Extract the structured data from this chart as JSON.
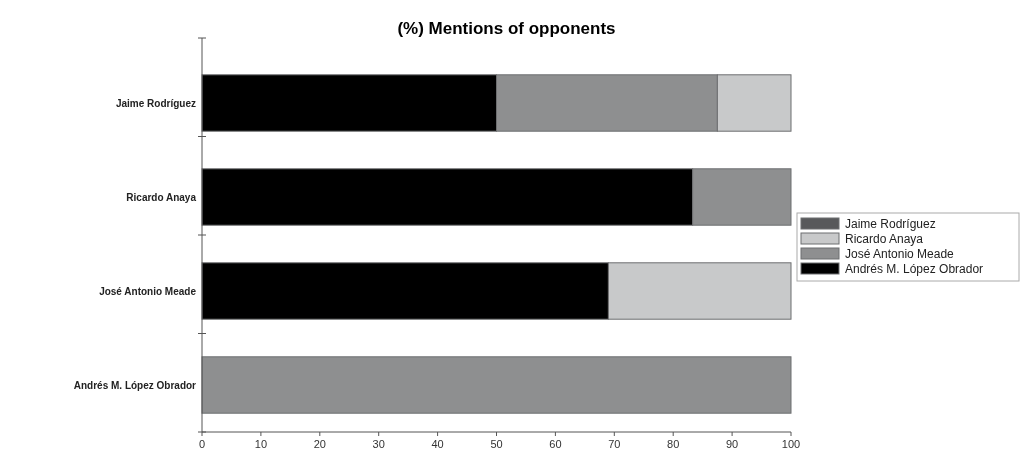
{
  "chart_data": {
    "type": "bar",
    "title": "(%) Mentions of opponents",
    "orientation": "horizontal",
    "stacked": true,
    "categories": [
      "Jaime Rodríguez",
      "Ricardo Anaya",
      "José Antonio Meade",
      "Andrés M. López Obrador"
    ],
    "series": [
      {
        "name": "Andrés M. López Obrador",
        "color": "#000000",
        "values": [
          50,
          83.3,
          69,
          0
        ]
      },
      {
        "name": "José Antonio Meade",
        "color": "#8e8f90",
        "values": [
          37.5,
          16.7,
          0,
          100
        ]
      },
      {
        "name": "Ricardo Anaya",
        "color": "#c8c9ca",
        "values": [
          12.5,
          0,
          31,
          0
        ]
      },
      {
        "name": "Jaime Rodríguez",
        "color": "#58595b",
        "values": [
          0,
          0,
          0,
          0
        ]
      }
    ],
    "xlim": [
      0,
      100
    ],
    "xticks": [
      0,
      10,
      20,
      30,
      40,
      50,
      60,
      70,
      80,
      90,
      100
    ],
    "grid": false,
    "legend": "right"
  }
}
